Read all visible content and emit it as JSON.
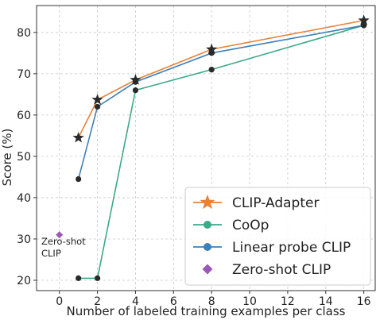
{
  "chart_data": {
    "type": "line",
    "xlabel": "Number of labeled training examples per class",
    "ylabel": "Score (%)",
    "xlim": [
      -1.2,
      16.6
    ],
    "ylim": [
      17.5,
      86.5
    ],
    "xticks": [
      "0",
      "2",
      "4",
      "6",
      "8",
      "10",
      "12",
      "14",
      "16"
    ],
    "yticks": [
      "20",
      "30",
      "40",
      "50",
      "60",
      "70",
      "80"
    ],
    "grid": true,
    "legend_position": "bottom-right",
    "series": [
      {
        "name": "CLIP-Adapter",
        "color": "#e8823a",
        "marker": "star",
        "x": [
          1,
          2,
          4,
          8,
          16
        ],
        "y": [
          54.5,
          63.7,
          68.5,
          75.9,
          82.9
        ]
      },
      {
        "name": "CoOp",
        "color": "#3aaa88",
        "marker": "circle",
        "x": [
          1,
          2,
          4,
          8,
          16
        ],
        "y": [
          20.5,
          20.5,
          66.0,
          71.0,
          81.7
        ]
      },
      {
        "name": "Linear probe CLIP",
        "color": "#3f7fb8",
        "marker": "circle",
        "x": [
          1,
          2,
          4,
          8,
          16
        ],
        "y": [
          44.5,
          62.0,
          68.0,
          75.0,
          81.7
        ]
      },
      {
        "name": "Zero-shot CLIP",
        "color": "#9b59b6",
        "marker": "diamond",
        "x": [
          0
        ],
        "y": [
          31.0
        ]
      }
    ],
    "annotations": [
      {
        "line1": "Zero-shot",
        "line2": "CLIP"
      }
    ]
  }
}
